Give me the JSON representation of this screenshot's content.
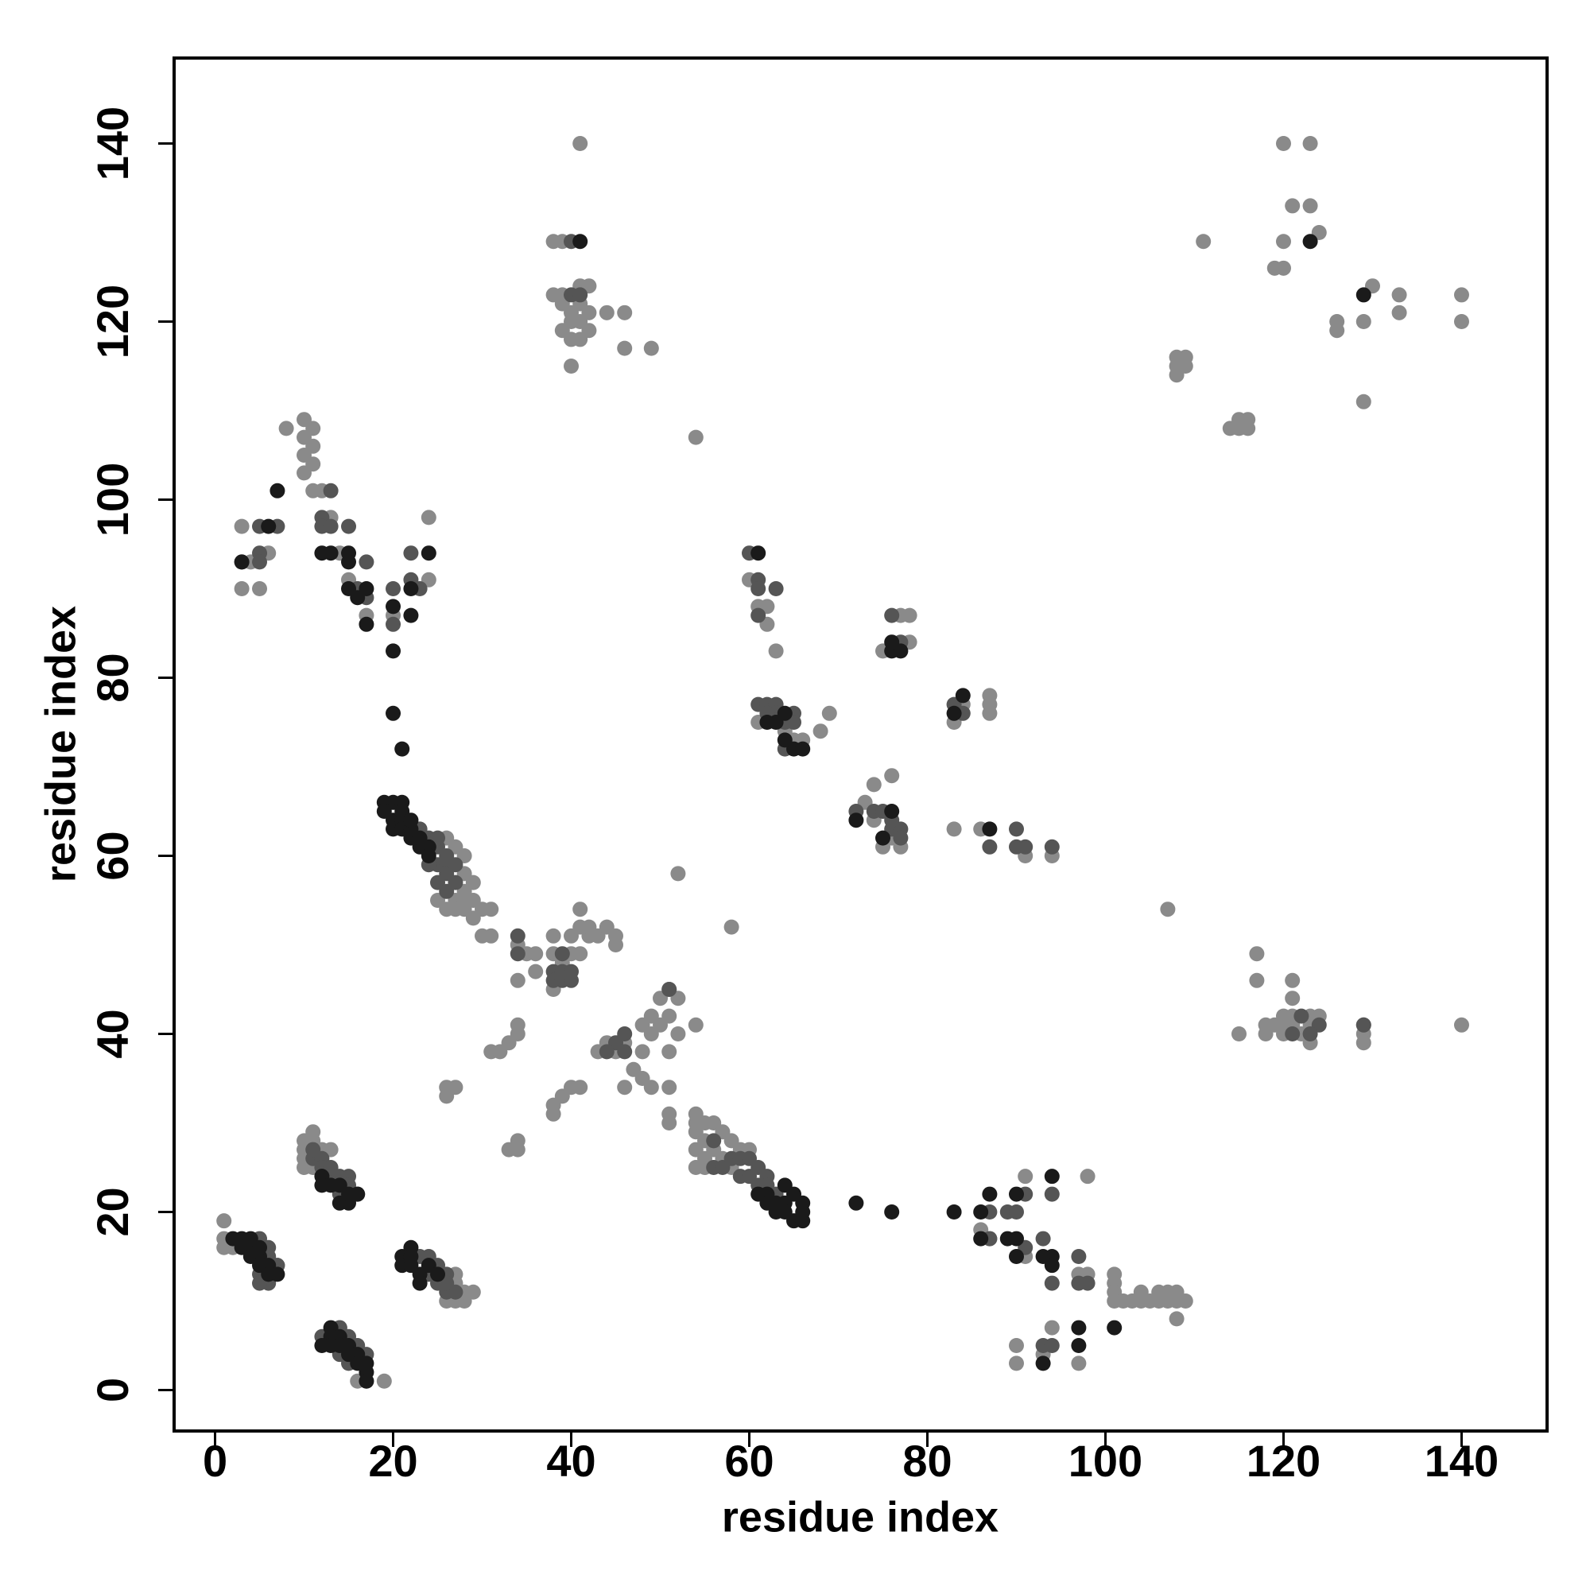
{
  "chart_data": {
    "type": "scatter",
    "xlabel": "residue index",
    "ylabel": "residue index",
    "xlim": [
      -4.6,
      149.6
    ],
    "ylim": [
      -4.6,
      149.6
    ],
    "xticks": [
      0,
      20,
      40,
      60,
      80,
      100,
      120,
      140
    ],
    "yticks": [
      0,
      20,
      40,
      60,
      80,
      100,
      120,
      140
    ],
    "series": [
      {
        "color": "#8a8a8a",
        "x": [
          1,
          1,
          1,
          2,
          7,
          14,
          16,
          19,
          17,
          10,
          10,
          10,
          11,
          11,
          12,
          13,
          11,
          10,
          27,
          27,
          28,
          28,
          27,
          29,
          26,
          26,
          27,
          28,
          27,
          26,
          27,
          28,
          28,
          29,
          29,
          28,
          30,
          29,
          30,
          31,
          31,
          25,
          28,
          54,
          54,
          54,
          54,
          55,
          55,
          56,
          56,
          55,
          57,
          57,
          58,
          58,
          59,
          60,
          54,
          55,
          3,
          3,
          4,
          5,
          6,
          8,
          10,
          10,
          10,
          10,
          11,
          11,
          11,
          11,
          12,
          15,
          17,
          20,
          24,
          24,
          13,
          14,
          33,
          34,
          34,
          31,
          32,
          33,
          34,
          34,
          34,
          34,
          35,
          36,
          36,
          38,
          38,
          38,
          39,
          40,
          41,
          41,
          40,
          41,
          42,
          42,
          43,
          44,
          45,
          45,
          38,
          38,
          39,
          40,
          41,
          26,
          26,
          27,
          43,
          44,
          45,
          46,
          46,
          47,
          48,
          48,
          49,
          48,
          49,
          49,
          50,
          50,
          51,
          51,
          51,
          51,
          51,
          51,
          52,
          52,
          54,
          52,
          58,
          54,
          38,
          38,
          39,
          39,
          39,
          40,
          40,
          40,
          40,
          41,
          41,
          41,
          41,
          41,
          42,
          42,
          42,
          44,
          46,
          46,
          49,
          39,
          60,
          61,
          62,
          63,
          64,
          65,
          66,
          68,
          69,
          61,
          62,
          74,
          76,
          75,
          73,
          74,
          77,
          78,
          78,
          77,
          75,
          76,
          83,
          84,
          87,
          87,
          83,
          86,
          91,
          94,
          87,
          86,
          87,
          90,
          90,
          91,
          91,
          93,
          94,
          97,
          97,
          98,
          98,
          101,
          101,
          101,
          101,
          102,
          103,
          104,
          104,
          105,
          106,
          106,
          107,
          108,
          108,
          108,
          109,
          107,
          107,
          115,
          117,
          117,
          118,
          118,
          119,
          120,
          120,
          120,
          121,
          121,
          121,
          121,
          122,
          123,
          123,
          124,
          129,
          129,
          129,
          140,
          123,
          108,
          108,
          108,
          109,
          109,
          111,
          114,
          115,
          115,
          116,
          116,
          119,
          120,
          120,
          120,
          121,
          123,
          123,
          124,
          126,
          126,
          129,
          129,
          130,
          133,
          133,
          140,
          140
        ],
        "values": [
          19,
          17,
          16,
          16,
          14,
          7,
          1,
          1,
          1,
          28,
          27,
          26,
          29,
          28,
          27,
          27,
          25,
          25,
          12,
          13,
          10,
          11,
          10,
          11,
          10,
          62,
          61,
          60,
          55,
          54,
          54,
          54,
          56,
          55,
          57,
          58,
          54,
          53,
          51,
          54,
          51,
          55,
          55,
          31,
          29,
          27,
          25,
          28,
          26,
          30,
          27,
          25,
          29,
          26,
          28,
          25,
          27,
          27,
          30,
          30,
          97,
          90,
          93,
          90,
          94,
          108,
          109,
          107,
          105,
          103,
          108,
          106,
          104,
          101,
          101,
          91,
          87,
          87,
          98,
          91,
          98,
          94,
          27,
          28,
          27,
          38,
          38,
          39,
          40,
          41,
          46,
          50,
          49,
          49,
          47,
          51,
          49,
          45,
          48,
          49,
          49,
          54,
          51,
          52,
          51,
          52,
          51,
          52,
          50,
          51,
          32,
          31,
          33,
          34,
          34,
          34,
          33,
          34,
          38,
          39,
          38,
          39,
          34,
          36,
          38,
          35,
          34,
          41,
          40,
          42,
          44,
          41,
          45,
          42,
          38,
          34,
          31,
          30,
          44,
          40,
          41,
          58,
          52,
          107,
          129,
          123,
          129,
          122,
          123,
          121,
          120,
          118,
          115,
          140,
          124,
          122,
          120,
          118,
          124,
          121,
          119,
          121,
          121,
          117,
          117,
          119,
          91,
          75,
          86,
          83,
          74,
          73,
          73,
          74,
          76,
          88,
          88,
          68,
          69,
          83,
          66,
          64,
          87,
          87,
          84,
          61,
          61,
          62,
          75,
          77,
          78,
          77,
          63,
          63,
          60,
          60,
          76,
          18,
          17,
          5,
          3,
          24,
          15,
          4,
          7,
          13,
          3,
          24,
          13,
          13,
          12,
          11,
          10,
          10,
          10,
          11,
          10,
          10,
          10,
          11,
          10,
          11,
          10,
          8,
          10,
          11,
          54,
          40,
          49,
          46,
          41,
          40,
          41,
          42,
          41,
          40,
          46,
          44,
          42,
          41,
          40,
          42,
          41,
          42,
          41,
          40,
          39,
          41,
          39,
          116,
          115,
          114,
          116,
          115,
          129,
          108,
          109,
          108,
          109,
          108,
          126,
          126,
          129,
          140,
          133,
          140,
          133,
          130,
          120,
          119,
          120,
          111,
          124,
          123,
          121,
          123,
          120
        ]
      },
      {
        "color": "#555555",
        "x": [
          5,
          6,
          6,
          7,
          5,
          6,
          5,
          14,
          15,
          16,
          17,
          12,
          14,
          15,
          11,
          12,
          12,
          13,
          13,
          14,
          15,
          15,
          16,
          14,
          11,
          23,
          24,
          24,
          25,
          26,
          25,
          26,
          27,
          26,
          23,
          24,
          25,
          25,
          25,
          26,
          26,
          25,
          26,
          24,
          27,
          26,
          27,
          56,
          57,
          58,
          59,
          60,
          61,
          61,
          62,
          62,
          63,
          56,
          59,
          60,
          3,
          5,
          5,
          5,
          7,
          12,
          12,
          13,
          13,
          15,
          16,
          17,
          17,
          20,
          20,
          22,
          22,
          23,
          34,
          34,
          38,
          38,
          39,
          39,
          40,
          40,
          45,
          46,
          46,
          44,
          39,
          51,
          40,
          41,
          40,
          60,
          61,
          61,
          61,
          63,
          61,
          62,
          63,
          64,
          65,
          65,
          63,
          64,
          62,
          72,
          74,
          75,
          76,
          77,
          76,
          77,
          76,
          77,
          83,
          84,
          87,
          90,
          90,
          91,
          94,
          87,
          87,
          89,
          90,
          91,
          91,
          93,
          94,
          94,
          97,
          97,
          98,
          93,
          94,
          121,
          122,
          124,
          129,
          123
        ],
        "values": [
          17,
          16,
          15,
          14,
          13,
          12,
          12,
          7,
          6,
          5,
          4,
          6,
          4,
          3,
          26,
          26,
          25,
          25,
          24,
          24,
          24,
          23,
          22,
          22,
          27,
          15,
          15,
          13,
          12,
          13,
          14,
          11,
          11,
          12,
          63,
          62,
          61,
          62,
          59,
          59,
          58,
          57,
          56,
          59,
          57,
          60,
          59,
          25,
          25,
          26,
          24,
          24,
          25,
          23,
          24,
          23,
          22,
          28,
          26,
          26,
          93,
          97,
          94,
          93,
          97,
          98,
          97,
          101,
          97,
          97,
          90,
          93,
          89,
          90,
          86,
          91,
          94,
          90,
          49,
          51,
          47,
          46,
          46,
          47,
          46,
          47,
          39,
          40,
          38,
          38,
          49,
          45,
          123,
          123,
          129,
          94,
          91,
          90,
          87,
          90,
          77,
          77,
          77,
          75,
          76,
          75,
          76,
          72,
          76,
          65,
          65,
          65,
          63,
          63,
          87,
          84,
          64,
          62,
          77,
          76,
          61,
          63,
          61,
          61,
          61,
          20,
          17,
          20,
          20,
          22,
          16,
          17,
          12,
          22,
          15,
          12,
          12,
          5,
          5,
          40,
          42,
          41,
          41,
          40
        ]
      },
      {
        "color": "#1a1a1a",
        "x": [
          2,
          3,
          3,
          4,
          4,
          5,
          5,
          6,
          6,
          7,
          4,
          5,
          13,
          13,
          14,
          14,
          15,
          15,
          16,
          16,
          17,
          17,
          17,
          12,
          13,
          12,
          13,
          14,
          14,
          15,
          16,
          15,
          12,
          21,
          21,
          22,
          22,
          23,
          23,
          24,
          25,
          22,
          19,
          20,
          21,
          19,
          20,
          20,
          21,
          21,
          22,
          22,
          23,
          23,
          24,
          24,
          21,
          22,
          61,
          62,
          63,
          63,
          64,
          64,
          65,
          66,
          66,
          66,
          64,
          65,
          62,
          3,
          6,
          7,
          12,
          15,
          15,
          15,
          16,
          17,
          17,
          20,
          20,
          21,
          22,
          22,
          24,
          20,
          13,
          41,
          61,
          62,
          63,
          64,
          65,
          66,
          64,
          72,
          75,
          76,
          76,
          77,
          76,
          83,
          84,
          87,
          72,
          76,
          83,
          86,
          86,
          87,
          89,
          90,
          90,
          90,
          93,
          94,
          94,
          94,
          97,
          101,
          93,
          97,
          123,
          129
        ],
        "values": [
          17,
          17,
          16,
          16,
          15,
          15,
          14,
          14,
          13,
          13,
          17,
          16,
          7,
          6,
          6,
          5,
          5,
          4,
          4,
          3,
          3,
          2,
          1,
          5,
          5,
          24,
          23,
          23,
          21,
          21,
          22,
          22,
          23,
          15,
          14,
          16,
          14,
          13,
          12,
          14,
          13,
          15,
          66,
          66,
          66,
          65,
          64,
          63,
          64,
          63,
          62,
          63,
          61,
          62,
          61,
          60,
          65,
          64,
          22,
          22,
          21,
          20,
          21,
          20,
          19,
          19,
          20,
          21,
          23,
          22,
          21,
          93,
          97,
          101,
          94,
          94,
          93,
          90,
          89,
          90,
          86,
          83,
          76,
          72,
          87,
          90,
          94,
          88,
          94,
          129,
          94,
          75,
          75,
          76,
          72,
          72,
          73,
          64,
          62,
          65,
          83,
          83,
          84,
          76,
          78,
          63,
          21,
          20,
          20,
          20,
          17,
          22,
          17,
          22,
          17,
          15,
          15,
          15,
          14,
          24,
          5,
          7,
          3,
          7,
          129,
          123
        ]
      }
    ]
  }
}
